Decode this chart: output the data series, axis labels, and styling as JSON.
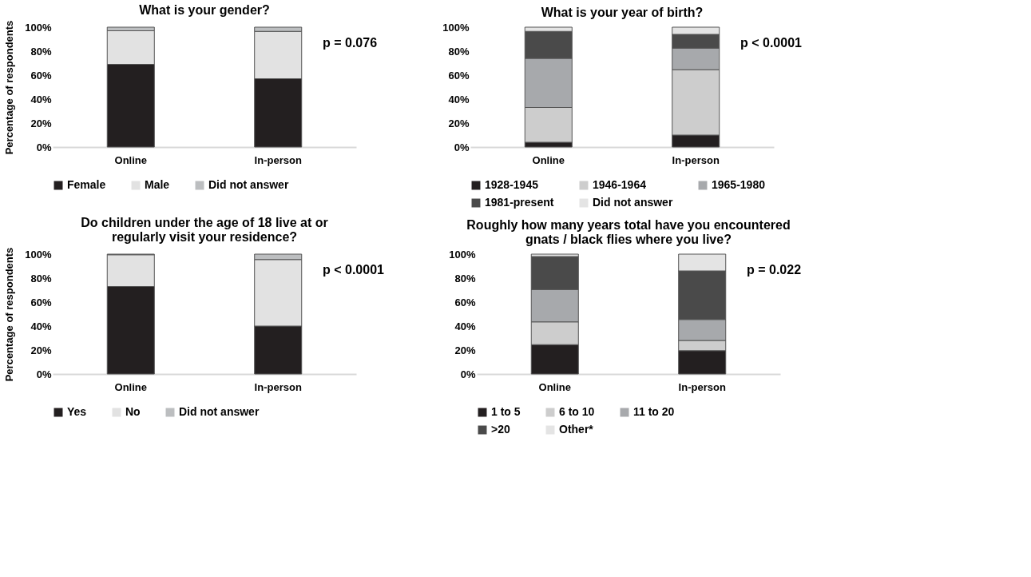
{
  "chart_data": [
    {
      "type": "bar",
      "stacked": true,
      "title": "What is your gender?",
      "ylabel": "Percentage of respondents",
      "categories": [
        "Online",
        "In-person"
      ],
      "ylim": [
        0,
        100
      ],
      "yticks": [
        {
          "value": 0,
          "label": "0%"
        },
        {
          "value": 20,
          "label": "20%"
        },
        {
          "value": 40,
          "label": "40%"
        },
        {
          "value": 60,
          "label": "60%"
        },
        {
          "value": 80,
          "label": "80%"
        },
        {
          "value": 100,
          "label": "100%"
        }
      ],
      "grid": false,
      "legend": "bottom",
      "annotations": [
        "p = 0.076"
      ],
      "series": [
        {
          "name": "Female",
          "color": "#231f20",
          "values": [
            69,
            57
          ]
        },
        {
          "name": "Male",
          "color": "#e2e2e2",
          "values": [
            28,
            39.5
          ]
        },
        {
          "name": "Did not answer",
          "color": "#bcbec0",
          "values": [
            3,
            3.5
          ]
        }
      ]
    },
    {
      "type": "bar",
      "stacked": true,
      "title": "What is your year of birth?",
      "categories": [
        "Online",
        "In-person"
      ],
      "ylim": [
        0,
        100
      ],
      "yticks": [
        {
          "value": 0,
          "label": "0%"
        },
        {
          "value": 20,
          "label": "20%"
        },
        {
          "value": 40,
          "label": "40%"
        },
        {
          "value": 60,
          "label": "60%"
        },
        {
          "value": 80,
          "label": "80%"
        },
        {
          "value": 100,
          "label": "100%"
        }
      ],
      "grid": false,
      "legend": "bottom",
      "annotations": [
        "p < 0.0001"
      ],
      "series": [
        {
          "name": "1928-1945",
          "color": "#231f20",
          "values": [
            4,
            10
          ]
        },
        {
          "name": "1946-1964",
          "color": "#cdcdcd",
          "values": [
            29,
            54.5
          ]
        },
        {
          "name": "1965-1980",
          "color": "#a7a9ac",
          "values": [
            41,
            18
          ]
        },
        {
          "name": "1981-present",
          "color": "#4a4a4a",
          "values": [
            22.5,
            11.5
          ]
        },
        {
          "name": "Did not answer",
          "color": "#e4e4e4",
          "values": [
            3.5,
            6
          ]
        }
      ]
    },
    {
      "type": "bar",
      "stacked": true,
      "title": "Do children under the age of 18 live at or regularly visit your residence?",
      "ylabel": "Percentage of respondents",
      "categories": [
        "Online",
        "In-person"
      ],
      "ylim": [
        0,
        100
      ],
      "yticks": [
        {
          "value": 0,
          "label": "0%"
        },
        {
          "value": 20,
          "label": "20%"
        },
        {
          "value": 40,
          "label": "40%"
        },
        {
          "value": 60,
          "label": "60%"
        },
        {
          "value": 80,
          "label": "80%"
        },
        {
          "value": 100,
          "label": "100%"
        }
      ],
      "grid": false,
      "legend": "bottom",
      "annotations": [
        "p < 0.0001"
      ],
      "series": [
        {
          "name": "Yes",
          "color": "#231f20",
          "values": [
            73,
            40
          ]
        },
        {
          "name": "No",
          "color": "#e2e2e2",
          "values": [
            26.5,
            55.5
          ]
        },
        {
          "name": "Did not answer",
          "color": "#bcbec0",
          "values": [
            0.5,
            4.5
          ]
        }
      ]
    },
    {
      "type": "bar",
      "stacked": true,
      "title": "Roughly how many years total have you encountered gnats / black flies where you live?",
      "categories": [
        "Online",
        "In-person"
      ],
      "ylim": [
        0,
        100
      ],
      "yticks": [
        {
          "value": 0,
          "label": "0%"
        },
        {
          "value": 20,
          "label": "20%"
        },
        {
          "value": 40,
          "label": "40%"
        },
        {
          "value": 60,
          "label": "60%"
        },
        {
          "value": 80,
          "label": "80%"
        },
        {
          "value": 100,
          "label": "100%"
        }
      ],
      "grid": false,
      "legend": "bottom",
      "annotations": [
        "p = 0.022"
      ],
      "series": [
        {
          "name": "1 to 5",
          "color": "#231f20",
          "values": [
            24.5,
            19.5
          ]
        },
        {
          "name": "6 to 10",
          "color": "#cdcdcd",
          "values": [
            19,
            8.5
          ]
        },
        {
          "name": "11 to 20",
          "color": "#a7a9ac",
          "values": [
            27,
            17.5
          ]
        },
        {
          "name": ">20",
          "color": "#4a4a4a",
          "values": [
            27.5,
            40.5
          ]
        },
        {
          "name": "Other*",
          "color": "#e4e4e4",
          "values": [
            2,
            14
          ]
        }
      ]
    }
  ]
}
